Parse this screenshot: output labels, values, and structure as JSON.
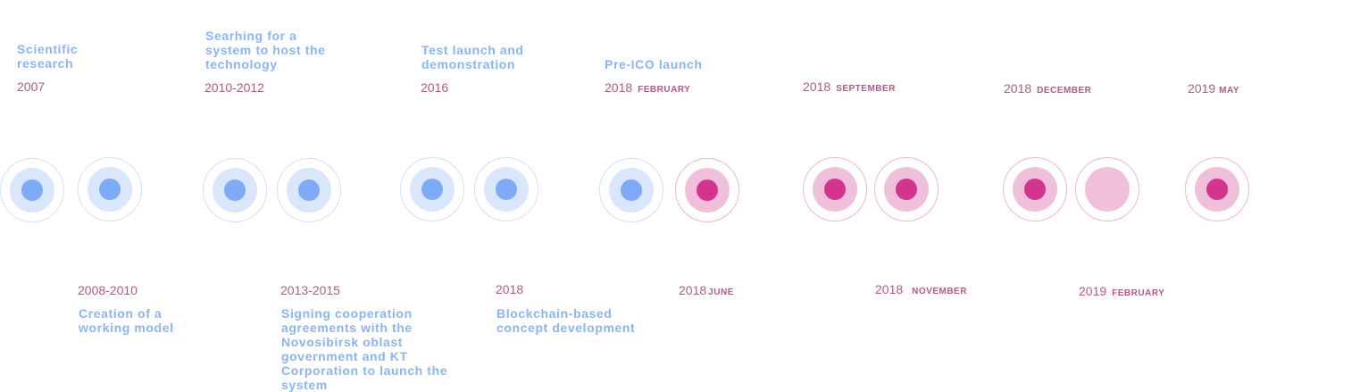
{
  "milestones": [
    {
      "label": "Scientific\nresearch",
      "year": "2007",
      "month": ""
    },
    {
      "label": "Creation of a\nworking model",
      "year": "2008-2010",
      "month": ""
    },
    {
      "label": "Searhing for a\nsystem to host the\ntechnology",
      "year": "2010-2012",
      "month": ""
    },
    {
      "label": "Signing cooperation\nagreements with the\nNovosibirsk oblast\ngovernment and KT\nCorporation to launch the\nsystem",
      "year": "2013-2015",
      "month": ""
    },
    {
      "label": "Test launch and\ndemonstration",
      "year": "2016",
      "month": ""
    },
    {
      "label": "Blockchain-based\nconcept development",
      "year": "2018",
      "month": ""
    },
    {
      "label": "Pre-ICO launch",
      "year": "2018",
      "month": "FEBRUARY"
    },
    {
      "label": "",
      "year": "2018",
      "month": "JUNE"
    },
    {
      "label": "",
      "year": "2018",
      "month": "SEPTEMBER"
    },
    {
      "label": "",
      "year": "2018",
      "month": "NOVEMBER"
    },
    {
      "label": "",
      "year": "2018",
      "month": "DECEMBER"
    },
    {
      "label": "",
      "year": "2019",
      "month": "FEBRUARY"
    },
    {
      "label": "",
      "year": "2019",
      "month": "MAY"
    }
  ],
  "colors": {
    "past": "#7faaf5",
    "future": "#d2358b",
    "year_text": "#b05a86"
  }
}
